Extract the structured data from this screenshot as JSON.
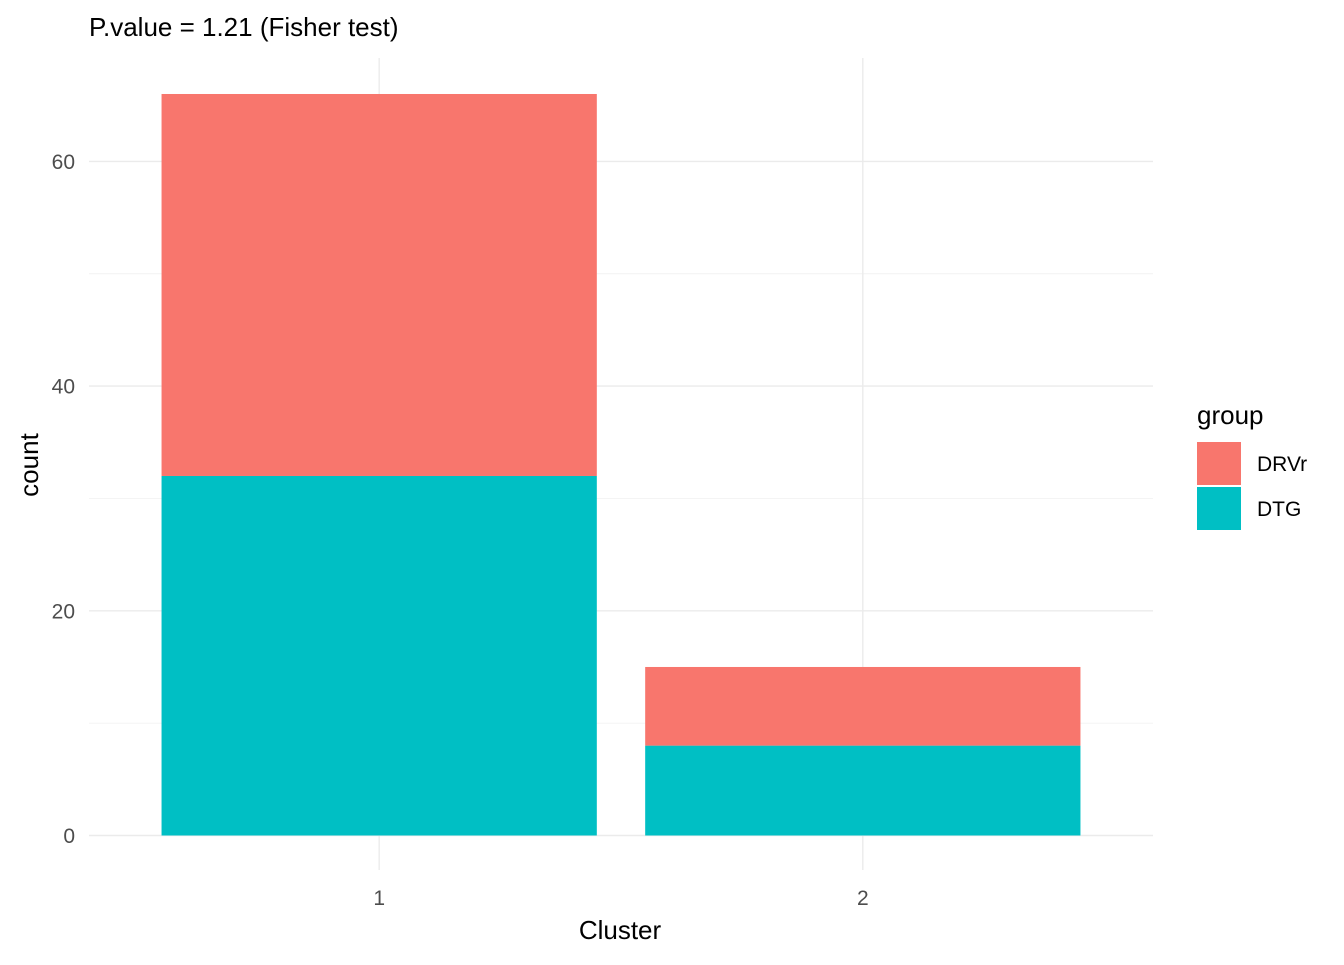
{
  "chart_data": {
    "type": "bar",
    "stacked": true,
    "title": "P.value = 1.21 (Fisher test)",
    "xlabel": "Cluster",
    "ylabel": "count",
    "categories": [
      "1",
      "2"
    ],
    "series": [
      {
        "name": "DRVr",
        "values": [
          34,
          7
        ],
        "color": "#F8766D"
      },
      {
        "name": "DTG",
        "values": [
          32,
          8
        ],
        "color": "#00BFC4"
      }
    ],
    "stack_order_bottom_to_top": [
      "DTG",
      "DRVr"
    ],
    "ylim": [
      0,
      69.3
    ],
    "yticks": [
      0,
      20,
      40,
      60
    ],
    "grid": true,
    "legend": {
      "title": "group",
      "position": "right"
    }
  }
}
